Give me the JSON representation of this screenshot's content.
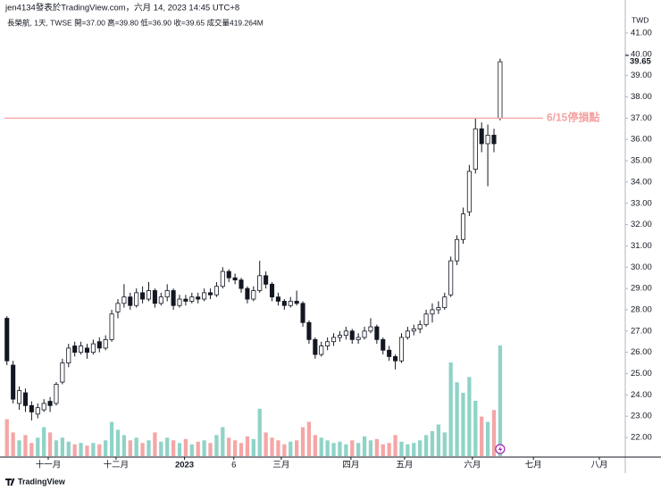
{
  "chart_data": {
    "type": "candlestick",
    "title": "jen4134發表於TradingView.com，六月 14, 2023 14:45 UTC+8",
    "legend": "長榮航, 1天, TWSE  開=37.00  高=39.80  低=36.90  收=39.65  成交量419.264M",
    "currency": "TWD",
    "brand": "TradingView",
    "up_color": "#ffffff",
    "down_color": "#131722",
    "wick_color": "#131722",
    "volume_up_color": "#8fd3c8",
    "volume_down_color": "#f4a6a6",
    "grid": false,
    "xlim": [
      -0.4,
      100.3
    ],
    "ylim": [
      21.08,
      42.34
    ],
    "yticks": [
      {
        "value": 22,
        "label": "22.00"
      },
      {
        "value": 23,
        "label": "23.00"
      },
      {
        "value": 24,
        "label": "24.00"
      },
      {
        "value": 25,
        "label": "25.00"
      },
      {
        "value": 26,
        "label": "26.00"
      },
      {
        "value": 27,
        "label": "27.00"
      },
      {
        "value": 28,
        "label": "28.00"
      },
      {
        "value": 29,
        "label": "29.00"
      },
      {
        "value": 30,
        "label": "30.00"
      },
      {
        "value": 31,
        "label": "31.00"
      },
      {
        "value": 32,
        "label": "32.00"
      },
      {
        "value": 33,
        "label": "33.00"
      },
      {
        "value": 34,
        "label": "34.00"
      },
      {
        "value": 35,
        "label": "35.00"
      },
      {
        "value": 36,
        "label": "36.00"
      },
      {
        "value": 37,
        "label": "37.00"
      },
      {
        "value": 38,
        "label": "38.00"
      },
      {
        "value": 39,
        "label": "39.00"
      },
      {
        "value": 40,
        "label": "40.00"
      },
      {
        "value": 41,
        "label": "41.00"
      }
    ],
    "xticks": [
      {
        "value": 6.7,
        "label": "十一月"
      },
      {
        "value": 17.7,
        "label": "十二月"
      },
      {
        "value": 28.8,
        "label": "2023"
      },
      {
        "value": 36.8,
        "label": "6"
      },
      {
        "value": 44.5,
        "label": "三月"
      },
      {
        "value": 55.8,
        "label": "四月"
      },
      {
        "value": 64.5,
        "label": "五月"
      },
      {
        "value": 75.5,
        "label": "六月"
      },
      {
        "value": 85.4,
        "label": "七月"
      },
      {
        "value": 96.1,
        "label": "八月"
      }
    ],
    "hline": {
      "value": 37,
      "label": "6/15停損點",
      "color": "#f4a3a3"
    },
    "ohlc": [
      [
        27.6,
        27.7,
        25.4,
        25.6
      ],
      [
        25.4,
        25.6,
        23.6,
        23.8
      ],
      [
        23.6,
        24.4,
        23.3,
        24.2
      ],
      [
        24.1,
        24.3,
        23.2,
        23.5
      ],
      [
        23.5,
        23.7,
        22.8,
        23.2
      ],
      [
        23.1,
        23.6,
        22.9,
        23.4
      ],
      [
        23.3,
        23.8,
        23.2,
        23.6
      ],
      [
        23.7,
        23.9,
        23.2,
        23.5
      ],
      [
        23.6,
        24.6,
        23.5,
        24.5
      ],
      [
        24.6,
        25.7,
        24.5,
        25.5
      ],
      [
        25.5,
        26.4,
        25.3,
        26.2
      ],
      [
        26.3,
        26.5,
        25.8,
        26.0
      ],
      [
        26.0,
        26.5,
        25.9,
        26.3
      ],
      [
        26.2,
        26.4,
        25.7,
        26.0
      ],
      [
        26.0,
        26.6,
        25.9,
        26.4
      ],
      [
        26.5,
        26.7,
        26.0,
        26.2
      ],
      [
        26.2,
        26.8,
        26.1,
        26.6
      ],
      [
        26.6,
        28.0,
        26.5,
        27.8
      ],
      [
        27.9,
        28.5,
        27.6,
        28.3
      ],
      [
        28.3,
        29.2,
        28.1,
        28.6
      ],
      [
        28.6,
        28.8,
        28.0,
        28.2
      ],
      [
        28.2,
        29.0,
        28.1,
        28.8
      ],
      [
        28.8,
        29.1,
        28.3,
        28.5
      ],
      [
        28.5,
        29.3,
        28.4,
        28.9
      ],
      [
        28.9,
        29.0,
        28.1,
        28.3
      ],
      [
        28.3,
        28.8,
        28.2,
        28.6
      ],
      [
        28.6,
        29.2,
        28.4,
        28.9
      ],
      [
        28.9,
        29.0,
        28.0,
        28.2
      ],
      [
        28.2,
        28.7,
        28.1,
        28.5
      ],
      [
        28.5,
        28.7,
        28.2,
        28.4
      ],
      [
        28.4,
        28.8,
        28.3,
        28.6
      ],
      [
        28.6,
        28.8,
        28.3,
        28.5
      ],
      [
        28.5,
        29.0,
        28.4,
        28.8
      ],
      [
        28.8,
        29.0,
        28.5,
        28.7
      ],
      [
        28.7,
        29.3,
        28.6,
        29.1
      ],
      [
        29.1,
        30.0,
        29.0,
        29.8
      ],
      [
        29.8,
        29.9,
        29.3,
        29.5
      ],
      [
        29.5,
        29.7,
        29.2,
        29.4
      ],
      [
        29.4,
        29.5,
        28.8,
        29.0
      ],
      [
        29.0,
        29.1,
        28.3,
        28.5
      ],
      [
        28.5,
        29.1,
        28.4,
        28.9
      ],
      [
        28.9,
        30.3,
        28.8,
        29.6
      ],
      [
        29.6,
        29.8,
        29.0,
        29.2
      ],
      [
        29.2,
        29.3,
        28.4,
        28.6
      ],
      [
        28.6,
        28.8,
        28.2,
        28.4
      ],
      [
        28.4,
        28.5,
        28.0,
        28.2
      ],
      [
        28.2,
        28.6,
        28.1,
        28.4
      ],
      [
        28.4,
        28.9,
        28.2,
        28.3
      ],
      [
        28.3,
        28.4,
        27.2,
        27.4
      ],
      [
        27.4,
        27.5,
        26.4,
        26.6
      ],
      [
        26.6,
        26.7,
        25.7,
        25.9
      ],
      [
        25.9,
        26.5,
        25.8,
        26.3
      ],
      [
        26.3,
        26.7,
        26.1,
        26.5
      ],
      [
        26.5,
        26.9,
        26.3,
        26.7
      ],
      [
        26.7,
        27.0,
        26.5,
        26.8
      ],
      [
        26.8,
        27.2,
        26.6,
        27.0
      ],
      [
        27.0,
        27.1,
        26.4,
        26.6
      ],
      [
        26.6,
        26.9,
        26.4,
        26.7
      ],
      [
        26.7,
        27.2,
        26.6,
        27.0
      ],
      [
        27.0,
        27.6,
        26.9,
        27.2
      ],
      [
        27.2,
        27.3,
        26.4,
        26.6
      ],
      [
        26.6,
        26.7,
        25.9,
        26.1
      ],
      [
        26.1,
        26.3,
        25.6,
        25.8
      ],
      [
        25.8,
        25.9,
        25.2,
        25.6
      ],
      [
        25.6,
        26.9,
        25.5,
        26.7
      ],
      [
        26.7,
        27.2,
        26.6,
        27.0
      ],
      [
        27.0,
        27.3,
        26.8,
        27.1
      ],
      [
        27.1,
        27.5,
        26.9,
        27.3
      ],
      [
        27.3,
        28.0,
        27.2,
        27.8
      ],
      [
        27.8,
        28.3,
        27.4,
        28.0
      ],
      [
        28.0,
        28.4,
        27.8,
        28.1
      ],
      [
        28.1,
        28.8,
        28.0,
        28.6
      ],
      [
        28.7,
        30.5,
        28.6,
        30.3
      ],
      [
        30.3,
        31.5,
        30.1,
        31.3
      ],
      [
        31.3,
        32.8,
        31.1,
        32.5
      ],
      [
        32.6,
        34.8,
        32.4,
        34.5
      ],
      [
        34.6,
        37.0,
        34.4,
        36.5
      ],
      [
        36.5,
        36.8,
        35.4,
        35.8
      ],
      [
        35.8,
        36.7,
        33.8,
        36.2
      ],
      [
        36.2,
        36.5,
        35.4,
        35.8
      ],
      [
        37.0,
        39.8,
        36.9,
        39.65
      ]
    ],
    "volume": [
      140,
      90,
      60,
      80,
      50,
      70,
      110,
      90,
      60,
      70,
      55,
      45,
      50,
      40,
      50,
      45,
      60,
      130,
      100,
      80,
      60,
      70,
      50,
      60,
      90,
      55,
      70,
      60,
      50,
      65,
      45,
      55,
      60,
      50,
      80,
      110,
      70,
      60,
      50,
      75,
      65,
      180,
      90,
      70,
      60,
      45,
      55,
      60,
      110,
      130,
      80,
      70,
      60,
      50,
      55,
      45,
      60,
      50,
      75,
      60,
      65,
      45,
      50,
      80,
      55,
      45,
      50,
      60,
      80,
      95,
      120,
      90,
      355,
      280,
      240,
      300,
      210,
      150,
      130,
      175,
      419.264
    ]
  }
}
